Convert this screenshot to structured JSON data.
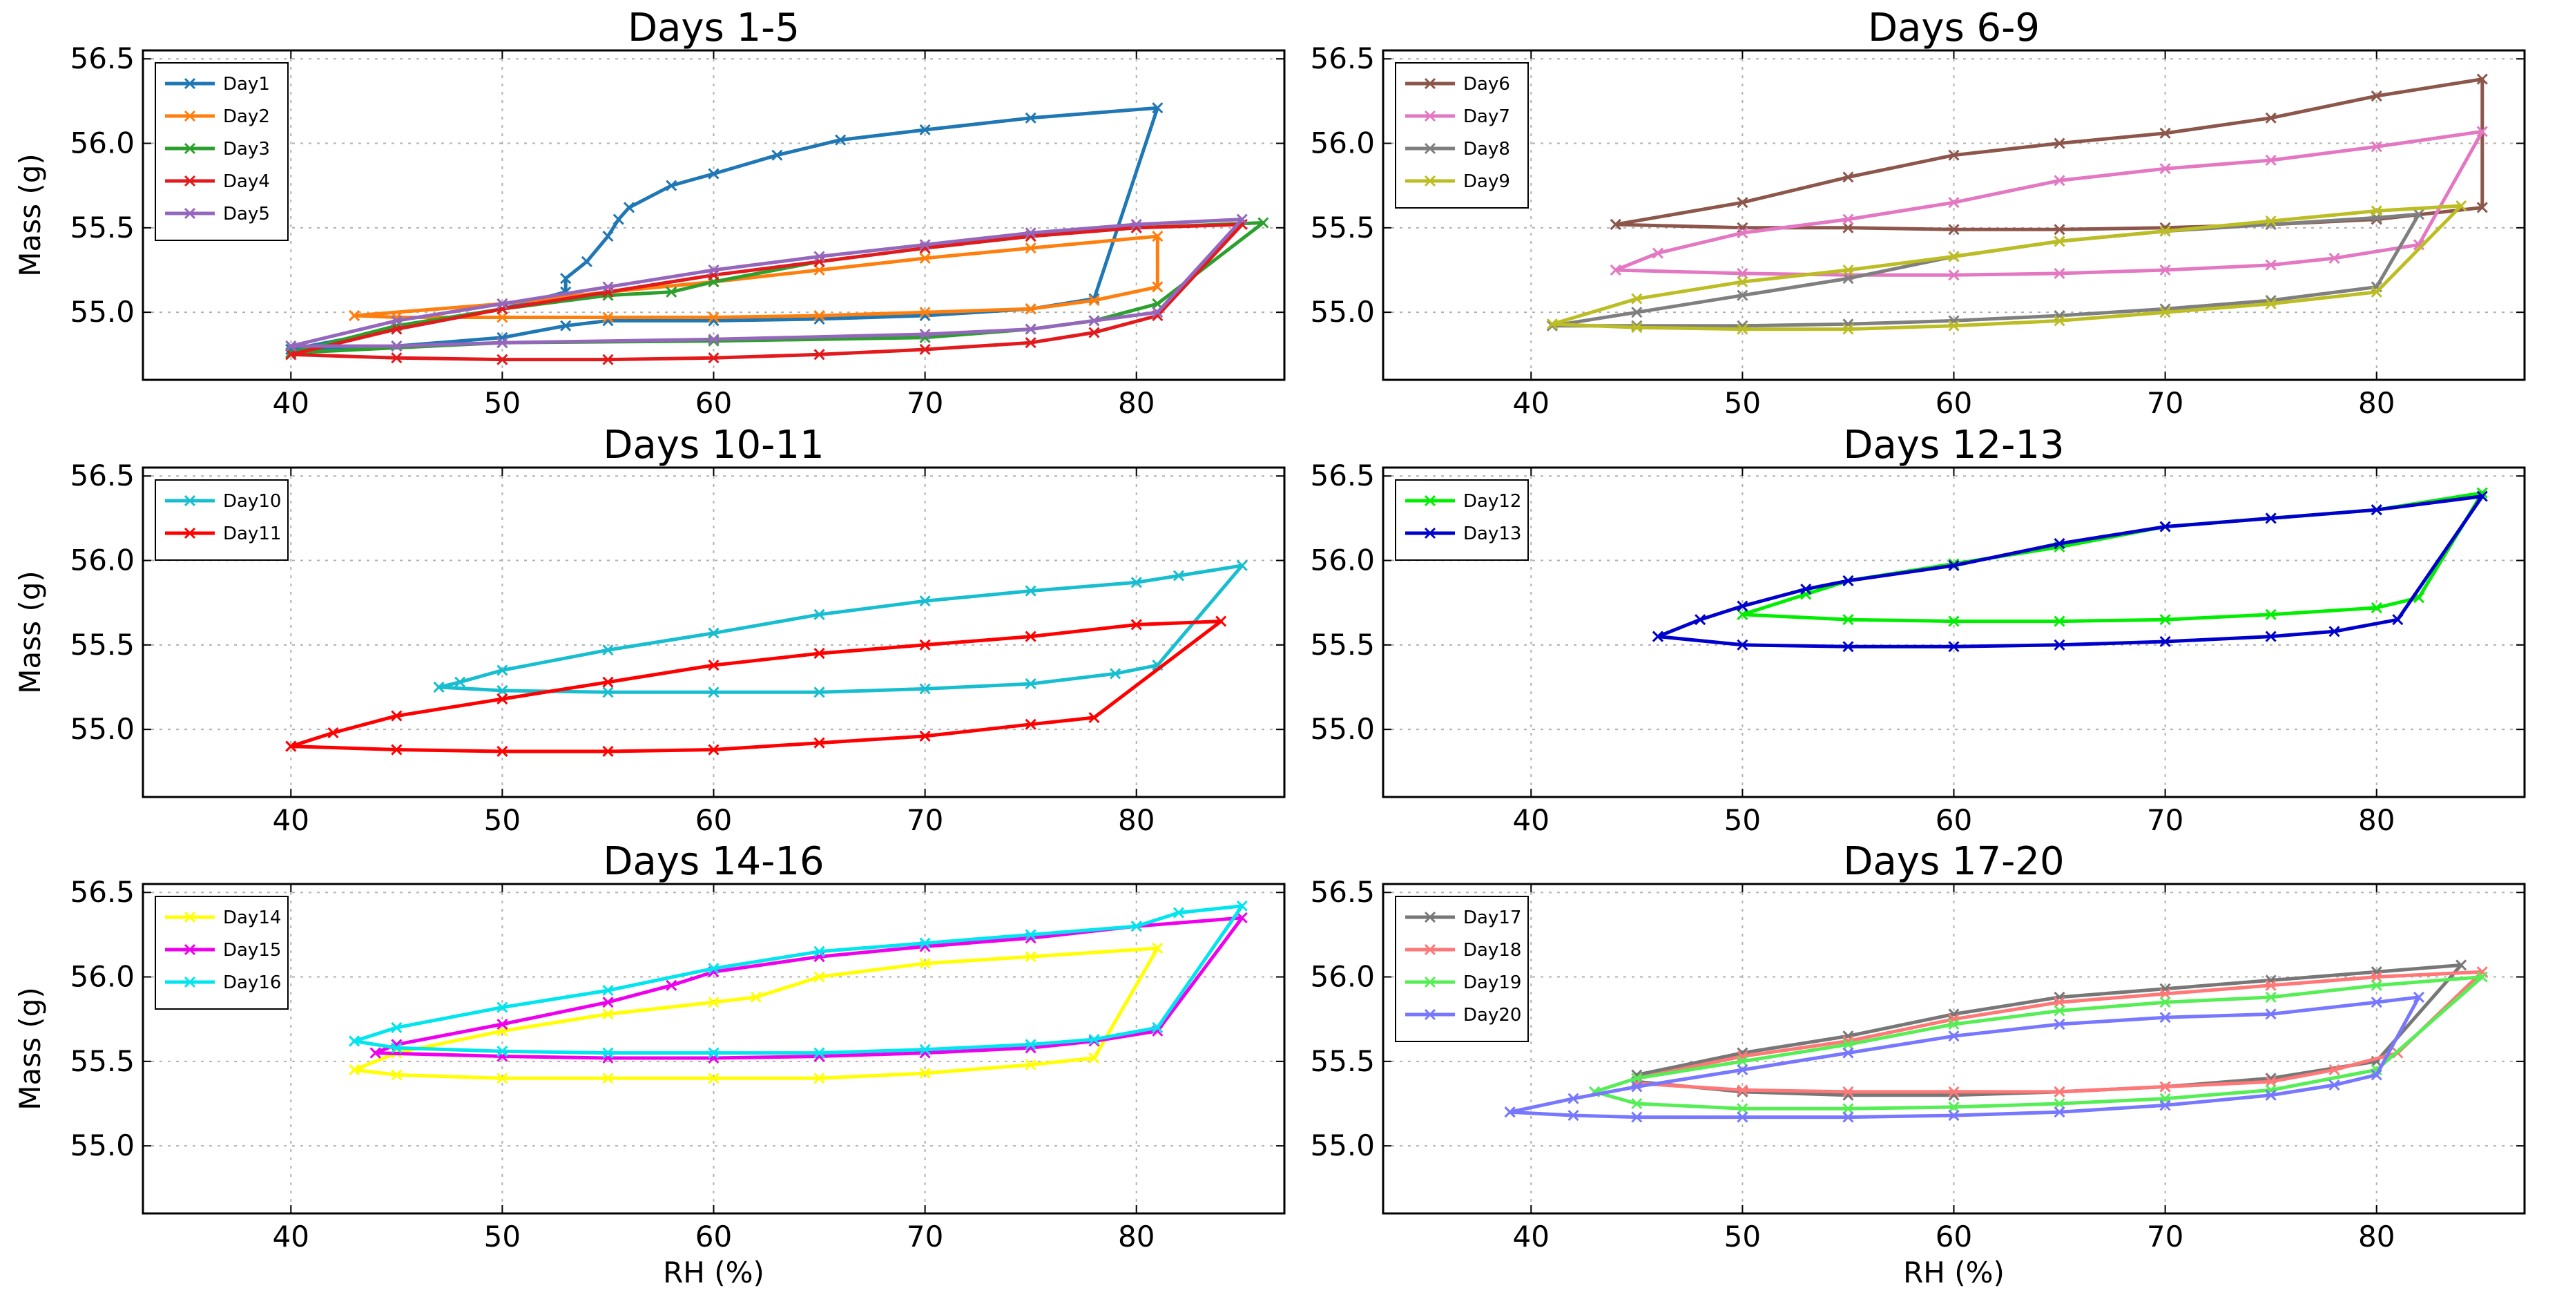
{
  "chart_data": [
    {
      "type": "line",
      "title": "Days 1-5",
      "xlabel": "",
      "ylabel": "Mass (g)",
      "xlim": [
        33,
        87
      ],
      "ylim": [
        54.6,
        56.55
      ],
      "xticks": [
        "40",
        "50",
        "60",
        "70",
        "80"
      ],
      "yticks": [
        "55.0",
        "55.5",
        "56.0",
        "56.5"
      ],
      "legend_position": "top-left",
      "grid": true,
      "series": [
        {
          "name": "Day1",
          "color": "#1f77b4",
          "x": [
            40,
            45,
            50,
            53,
            53,
            54,
            55,
            55.5,
            56,
            58,
            60,
            63,
            66,
            70,
            75,
            81,
            78,
            75,
            70,
            65,
            60,
            55,
            53,
            50,
            45,
            40
          ],
          "y": [
            54.78,
            54.9,
            55.02,
            55.12,
            55.2,
            55.3,
            55.45,
            55.55,
            55.62,
            55.75,
            55.82,
            55.93,
            56.02,
            56.08,
            56.15,
            56.21,
            55.08,
            55.02,
            54.98,
            54.96,
            54.95,
            54.95,
            54.92,
            54.85,
            54.8,
            54.78
          ]
        },
        {
          "name": "Day2",
          "color": "#ff7f0e",
          "x": [
            43,
            50,
            55,
            60,
            65,
            70,
            75,
            81,
            81,
            78,
            75,
            70,
            65,
            60,
            55,
            50,
            45,
            43
          ],
          "y": [
            54.98,
            55.05,
            55.12,
            55.18,
            55.25,
            55.32,
            55.38,
            55.45,
            55.15,
            55.07,
            55.02,
            55.0,
            54.98,
            54.97,
            54.97,
            54.97,
            54.97,
            54.98
          ]
        },
        {
          "name": "Day3",
          "color": "#2ca02c",
          "x": [
            40,
            45,
            50,
            55,
            58,
            60,
            65,
            70,
            75,
            80,
            86,
            81,
            78,
            75,
            70,
            60,
            50,
            40
          ],
          "y": [
            54.76,
            54.92,
            55.02,
            55.1,
            55.12,
            55.18,
            55.3,
            55.38,
            55.45,
            55.5,
            55.53,
            55.05,
            54.95,
            54.9,
            54.85,
            54.83,
            54.82,
            54.76
          ]
        },
        {
          "name": "Day4",
          "color": "#e31a1c",
          "x": [
            40,
            45,
            50,
            55,
            60,
            65,
            70,
            75,
            80,
            85,
            81,
            78,
            75,
            70,
            65,
            60,
            55,
            50,
            45,
            40
          ],
          "y": [
            54.75,
            54.9,
            55.02,
            55.12,
            55.22,
            55.3,
            55.38,
            55.45,
            55.5,
            55.52,
            54.98,
            54.88,
            54.82,
            54.78,
            54.75,
            54.73,
            54.72,
            54.72,
            54.73,
            54.75
          ]
        },
        {
          "name": "Day5",
          "color": "#9467bd",
          "x": [
            40,
            45,
            50,
            55,
            60,
            65,
            70,
            75,
            80,
            85,
            81,
            78,
            75,
            70,
            60,
            50,
            45,
            40
          ],
          "y": [
            54.8,
            54.95,
            55.05,
            55.15,
            55.25,
            55.33,
            55.4,
            55.47,
            55.52,
            55.55,
            55.0,
            54.95,
            54.9,
            54.87,
            54.84,
            54.82,
            54.8,
            54.8
          ]
        }
      ]
    },
    {
      "type": "line",
      "title": "Days 6-9",
      "xlabel": "",
      "ylabel": "",
      "xlim": [
        33,
        87
      ],
      "ylim": [
        54.6,
        56.55
      ],
      "xticks": [
        "40",
        "50",
        "60",
        "70",
        "80"
      ],
      "yticks": [
        "55.0",
        "55.5",
        "56.0",
        "56.5"
      ],
      "legend_position": "top-left",
      "grid": true,
      "series": [
        {
          "name": "Day6",
          "color": "#8c564b",
          "x": [
            44,
            50,
            55,
            60,
            65,
            70,
            75,
            80,
            85,
            85,
            80,
            75,
            70,
            65,
            60,
            55,
            50,
            44
          ],
          "y": [
            55.52,
            55.65,
            55.8,
            55.93,
            56.0,
            56.06,
            56.15,
            56.28,
            56.38,
            55.62,
            55.55,
            55.52,
            55.5,
            55.49,
            55.49,
            55.5,
            55.5,
            55.52
          ]
        },
        {
          "name": "Day7",
          "color": "#e377c2",
          "x": [
            44,
            46,
            50,
            55,
            60,
            65,
            70,
            75,
            80,
            85,
            82,
            78,
            75,
            70,
            65,
            60,
            55,
            50,
            44
          ],
          "y": [
            55.25,
            55.35,
            55.47,
            55.55,
            55.65,
            55.78,
            55.85,
            55.9,
            55.98,
            56.07,
            55.4,
            55.32,
            55.28,
            55.25,
            55.23,
            55.22,
            55.22,
            55.23,
            55.25
          ]
        },
        {
          "name": "Day8",
          "color": "#7f7f7f",
          "x": [
            41,
            45,
            50,
            55,
            60,
            65,
            70,
            75,
            80,
            82,
            80,
            75,
            70,
            65,
            60,
            55,
            50,
            45,
            41
          ],
          "y": [
            54.92,
            55.0,
            55.1,
            55.2,
            55.33,
            55.42,
            55.48,
            55.52,
            55.56,
            55.58,
            55.15,
            55.07,
            55.02,
            54.98,
            54.95,
            54.93,
            54.92,
            54.92,
            54.92
          ]
        },
        {
          "name": "Day9",
          "color": "#bcbd22",
          "x": [
            41,
            45,
            50,
            55,
            60,
            65,
            70,
            75,
            80,
            84,
            80,
            75,
            70,
            65,
            60,
            55,
            50,
            45,
            41
          ],
          "y": [
            54.93,
            55.08,
            55.18,
            55.25,
            55.33,
            55.42,
            55.48,
            55.54,
            55.6,
            55.63,
            55.12,
            55.05,
            55.0,
            54.95,
            54.92,
            54.9,
            54.9,
            54.91,
            54.93
          ]
        }
      ]
    },
    {
      "type": "line",
      "title": "Days 10-11",
      "xlabel": "",
      "ylabel": "Mass (g)",
      "xlim": [
        33,
        87
      ],
      "ylim": [
        54.6,
        56.55
      ],
      "xticks": [
        "40",
        "50",
        "60",
        "70",
        "80"
      ],
      "yticks": [
        "55.0",
        "55.5",
        "56.0",
        "56.5"
      ],
      "legend_position": "top-left",
      "grid": true,
      "series": [
        {
          "name": "Day10",
          "color": "#17becf",
          "x": [
            47,
            48,
            50,
            55,
            60,
            65,
            70,
            75,
            80,
            82,
            85,
            81,
            79,
            75,
            70,
            65,
            60,
            55,
            50,
            47
          ],
          "y": [
            55.25,
            55.28,
            55.35,
            55.47,
            55.57,
            55.68,
            55.76,
            55.82,
            55.87,
            55.91,
            55.97,
            55.38,
            55.33,
            55.27,
            55.24,
            55.22,
            55.22,
            55.22,
            55.23,
            55.25
          ]
        },
        {
          "name": "Day11",
          "color": "#ff0000",
          "x": [
            40,
            42,
            45,
            50,
            55,
            60,
            65,
            70,
            75,
            80,
            84,
            78,
            75,
            70,
            65,
            60,
            55,
            50,
            45,
            40
          ],
          "y": [
            54.9,
            54.98,
            55.08,
            55.18,
            55.28,
            55.38,
            55.45,
            55.5,
            55.55,
            55.62,
            55.64,
            55.07,
            55.03,
            54.96,
            54.92,
            54.88,
            54.87,
            54.87,
            54.88,
            54.9
          ]
        }
      ]
    },
    {
      "type": "line",
      "title": "Days 12-13",
      "xlabel": "",
      "ylabel": "",
      "xlim": [
        33,
        87
      ],
      "ylim": [
        54.6,
        56.55
      ],
      "xticks": [
        "40",
        "50",
        "60",
        "70",
        "80"
      ],
      "yticks": [
        "55.0",
        "55.5",
        "56.0",
        "56.5"
      ],
      "legend_position": "top-left",
      "grid": true,
      "series": [
        {
          "name": "Day12",
          "color": "#00ee00",
          "x": [
            50,
            53,
            55,
            60,
            65,
            70,
            75,
            80,
            85,
            82,
            80,
            75,
            70,
            65,
            60,
            55,
            50
          ],
          "y": [
            55.68,
            55.8,
            55.88,
            55.98,
            56.08,
            56.2,
            56.25,
            56.3,
            56.4,
            55.78,
            55.72,
            55.68,
            55.65,
            55.64,
            55.64,
            55.65,
            55.68
          ]
        },
        {
          "name": "Day13",
          "color": "#0000cc",
          "x": [
            46,
            48,
            50,
            53,
            55,
            60,
            65,
            70,
            75,
            80,
            85,
            81,
            78,
            75,
            70,
            65,
            60,
            55,
            50,
            46
          ],
          "y": [
            55.55,
            55.65,
            55.73,
            55.83,
            55.88,
            55.97,
            56.1,
            56.2,
            56.25,
            56.3,
            56.38,
            55.65,
            55.58,
            55.55,
            55.52,
            55.5,
            55.49,
            55.49,
            55.5,
            55.55
          ]
        }
      ]
    },
    {
      "type": "line",
      "title": "Days 14-16",
      "xlabel": "RH (%)",
      "ylabel": "Mass (g)",
      "xlim": [
        33,
        87
      ],
      "ylim": [
        54.6,
        56.55
      ],
      "xticks": [
        "40",
        "50",
        "60",
        "70",
        "80"
      ],
      "yticks": [
        "55.0",
        "55.5",
        "56.0",
        "56.5"
      ],
      "legend_position": "top-left",
      "grid": true,
      "series": [
        {
          "name": "Day14",
          "color": "#ffff00",
          "x": [
            43,
            45,
            50,
            55,
            60,
            62,
            65,
            70,
            75,
            81,
            78,
            75,
            70,
            65,
            60,
            55,
            50,
            45,
            43
          ],
          "y": [
            55.45,
            55.55,
            55.68,
            55.78,
            55.85,
            55.88,
            56.0,
            56.08,
            56.12,
            56.17,
            55.52,
            55.48,
            55.43,
            55.4,
            55.4,
            55.4,
            55.4,
            55.42,
            55.45
          ]
        },
        {
          "name": "Day15",
          "color": "#ee00ee",
          "x": [
            44,
            45,
            50,
            55,
            58,
            60,
            65,
            70,
            75,
            80,
            85,
            81,
            78,
            75,
            70,
            65,
            60,
            55,
            50,
            44
          ],
          "y": [
            55.55,
            55.6,
            55.72,
            55.85,
            55.95,
            56.03,
            56.12,
            56.18,
            56.23,
            56.3,
            56.35,
            55.68,
            55.62,
            55.58,
            55.55,
            55.53,
            55.52,
            55.52,
            55.53,
            55.55
          ]
        },
        {
          "name": "Day16",
          "color": "#00e5ee",
          "x": [
            43,
            45,
            50,
            55,
            60,
            65,
            70,
            75,
            80,
            82,
            85,
            81,
            78,
            75,
            70,
            65,
            60,
            55,
            50,
            45,
            43
          ],
          "y": [
            55.62,
            55.7,
            55.82,
            55.92,
            56.05,
            56.15,
            56.2,
            56.25,
            56.3,
            56.38,
            56.42,
            55.7,
            55.63,
            55.6,
            55.57,
            55.55,
            55.55,
            55.55,
            55.56,
            55.58,
            55.62
          ]
        }
      ]
    },
    {
      "type": "line",
      "title": "Days 17-20",
      "xlabel": "RH (%)",
      "ylabel": "",
      "xlim": [
        33,
        87
      ],
      "ylim": [
        54.6,
        56.55
      ],
      "xticks": [
        "40",
        "50",
        "60",
        "70",
        "80"
      ],
      "yticks": [
        "55.0",
        "55.5",
        "56.0",
        "56.5"
      ],
      "legend_position": "top-left",
      "grid": true,
      "series": [
        {
          "name": "Day17",
          "color": "#777777",
          "x": [
            45,
            50,
            55,
            60,
            65,
            70,
            75,
            80,
            84,
            80,
            75,
            70,
            65,
            60,
            55,
            50,
            45
          ],
          "y": [
            55.42,
            55.55,
            55.65,
            55.78,
            55.88,
            55.93,
            55.98,
            56.03,
            56.07,
            55.5,
            55.4,
            55.35,
            55.32,
            55.3,
            55.3,
            55.32,
            55.38
          ]
        },
        {
          "name": "Day18",
          "color": "#ff7777",
          "x": [
            45,
            50,
            55,
            60,
            65,
            70,
            75,
            80,
            85,
            81,
            78,
            75,
            70,
            65,
            60,
            55,
            50,
            45
          ],
          "y": [
            55.4,
            55.53,
            55.62,
            55.75,
            55.85,
            55.9,
            55.95,
            56.0,
            56.03,
            55.55,
            55.45,
            55.38,
            55.35,
            55.32,
            55.32,
            55.32,
            55.33,
            55.37
          ]
        },
        {
          "name": "Day19",
          "color": "#55ee55",
          "x": [
            43,
            45,
            50,
            55,
            60,
            65,
            70,
            75,
            80,
            85,
            80,
            75,
            70,
            65,
            60,
            55,
            50,
            45,
            43
          ],
          "y": [
            55.32,
            55.4,
            55.5,
            55.6,
            55.72,
            55.8,
            55.85,
            55.88,
            55.95,
            56.0,
            55.45,
            55.33,
            55.28,
            55.25,
            55.23,
            55.22,
            55.22,
            55.25,
            55.32
          ]
        },
        {
          "name": "Day20",
          "color": "#7777ff",
          "x": [
            39,
            42,
            45,
            50,
            55,
            60,
            65,
            70,
            75,
            80,
            82,
            80,
            78,
            75,
            70,
            65,
            60,
            55,
            50,
            45,
            42,
            39
          ],
          "y": [
            55.2,
            55.28,
            55.35,
            55.45,
            55.55,
            55.65,
            55.72,
            55.76,
            55.78,
            55.85,
            55.88,
            55.42,
            55.36,
            55.3,
            55.24,
            55.2,
            55.18,
            55.17,
            55.17,
            55.17,
            55.18,
            55.2
          ]
        }
      ]
    }
  ]
}
